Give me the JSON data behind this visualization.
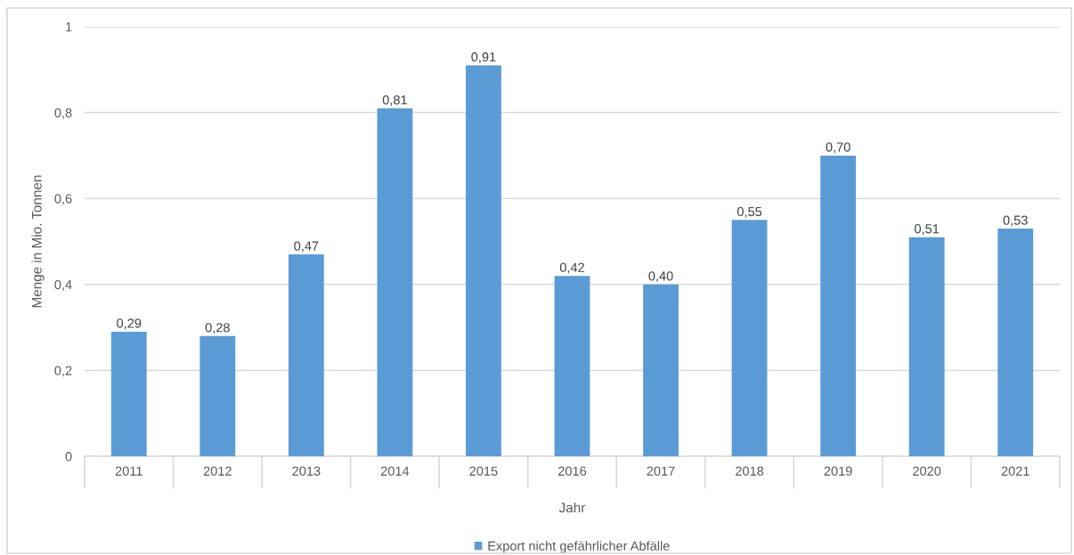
{
  "chart_data": {
    "type": "bar",
    "xlabel": "Jahr",
    "ylabel": "Menge in Mio. Tonnen",
    "categories": [
      "2011",
      "2012",
      "2013",
      "2014",
      "2015",
      "2016",
      "2017",
      "2018",
      "2019",
      "2020",
      "2021"
    ],
    "series": [
      {
        "name": "Export nicht gefährlicher Abfälle",
        "color": "#5b9bd5",
        "values": [
          0.29,
          0.28,
          0.47,
          0.81,
          0.91,
          0.42,
          0.4,
          0.55,
          0.7,
          0.51,
          0.53
        ],
        "value_labels": [
          "0,29",
          "0,28",
          "0,47",
          "0,81",
          "0,91",
          "0,42",
          "0,40",
          "0,55",
          "0,70",
          "0,51",
          "0,53"
        ]
      }
    ],
    "ylim": [
      0,
      1
    ],
    "yticks": [
      0,
      {
        "value": 0.2,
        "label": "0,2"
      },
      {
        "value": 0.4,
        "label": "0,4"
      },
      {
        "value": 0.6,
        "label": "0,6"
      },
      {
        "value": 0.8,
        "label": "0,8"
      },
      1
    ],
    "grid": "y",
    "legend": "bottom"
  }
}
